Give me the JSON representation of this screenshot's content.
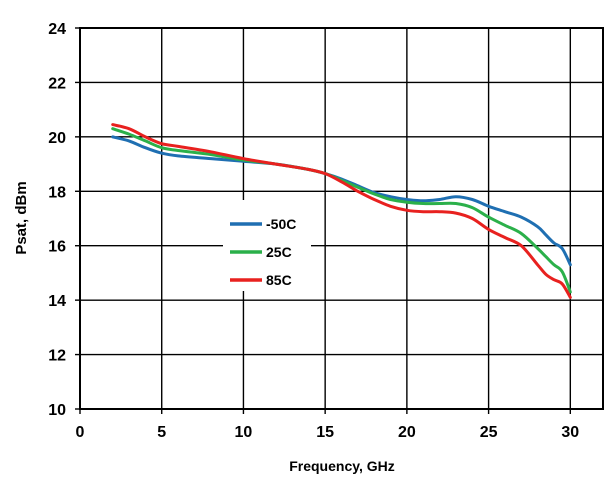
{
  "chart_data": {
    "type": "line",
    "xlabel": "Frequency, GHz",
    "ylabel": "Psat, dBm",
    "xlim": [
      0,
      32
    ],
    "ylim": [
      10,
      24
    ],
    "xticks": [
      0,
      5,
      10,
      15,
      20,
      25,
      30
    ],
    "yticks": [
      10,
      12,
      14,
      16,
      18,
      20,
      22,
      24
    ],
    "grid": true,
    "legend_position": "center-left",
    "series": [
      {
        "name": "-50C",
        "color": "#1f6fb2",
        "x": [
          2,
          3,
          4,
          5,
          6,
          8,
          10,
          12,
          14,
          15,
          16,
          17,
          18,
          19,
          20,
          21,
          22,
          23,
          24,
          25,
          26,
          27,
          28,
          28.5,
          29,
          29.5,
          30
        ],
        "y": [
          20.0,
          19.85,
          19.6,
          19.4,
          19.3,
          19.2,
          19.1,
          19.0,
          18.8,
          18.65,
          18.45,
          18.2,
          17.95,
          17.8,
          17.7,
          17.65,
          17.7,
          17.8,
          17.7,
          17.45,
          17.25,
          17.05,
          16.7,
          16.4,
          16.1,
          15.9,
          15.3
        ]
      },
      {
        "name": "25C",
        "color": "#2bb04a",
        "x": [
          2,
          3,
          4,
          5,
          6,
          8,
          10,
          12,
          14,
          15,
          16,
          17,
          18,
          19,
          20,
          21,
          22,
          23,
          24,
          25,
          26,
          27,
          28,
          28.5,
          29,
          29.5,
          30
        ],
        "y": [
          20.3,
          20.1,
          19.85,
          19.6,
          19.5,
          19.35,
          19.15,
          19.0,
          18.8,
          18.65,
          18.4,
          18.15,
          17.9,
          17.7,
          17.6,
          17.55,
          17.55,
          17.55,
          17.4,
          17.05,
          16.75,
          16.45,
          15.9,
          15.6,
          15.3,
          15.05,
          14.3
        ]
      },
      {
        "name": "85C",
        "color": "#e8211f",
        "x": [
          2,
          3,
          4,
          5,
          6,
          8,
          10,
          12,
          14,
          15,
          16,
          17,
          18,
          19,
          20,
          21,
          22,
          23,
          24,
          25,
          26,
          27,
          28,
          28.5,
          29,
          29.5,
          30
        ],
        "y": [
          20.45,
          20.3,
          20.0,
          19.75,
          19.65,
          19.45,
          19.2,
          19.0,
          18.8,
          18.65,
          18.35,
          18.0,
          17.7,
          17.45,
          17.3,
          17.25,
          17.25,
          17.2,
          17.0,
          16.6,
          16.3,
          16.0,
          15.3,
          14.95,
          14.75,
          14.6,
          14.1
        ]
      }
    ]
  }
}
